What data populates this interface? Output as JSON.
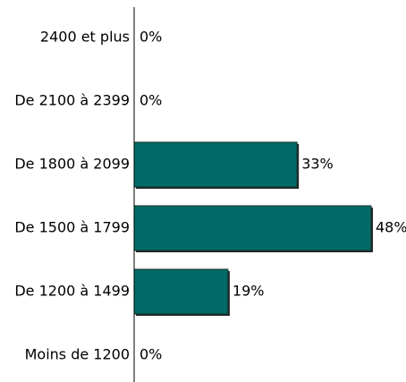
{
  "chart_data": {
    "type": "bar",
    "orientation": "horizontal",
    "categories": [
      "2400 et plus",
      "De 2100 à 2399",
      "De 1800 à 2099",
      "De 1500 à 1799",
      "De 1200 à 1499",
      "Moins de 1200"
    ],
    "values": [
      0,
      0,
      33,
      48,
      19,
      0
    ],
    "value_labels": [
      "0%",
      "0%",
      "33%",
      "48%",
      "19%",
      "0%"
    ],
    "unit": "%",
    "xlim": [
      0,
      50
    ],
    "grid": false,
    "legend": "none",
    "bar_color": "#006B66",
    "bar_shadow_color": "#1E2B28"
  }
}
